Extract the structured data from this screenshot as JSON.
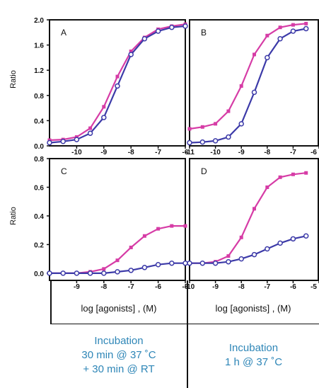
{
  "y_axis_label": "Ratio",
  "x_axis_label": "log [agonists] , (M)",
  "colors": {
    "series_a": "#d63ca6",
    "series_b": "#3c3aa8"
  },
  "chart_data": [
    {
      "type": "line",
      "panel": "A",
      "xlim": [
        -11,
        -6
      ],
      "ylim": [
        0,
        2.0
      ],
      "yticks": [
        "0.0",
        "0.4",
        "0.8",
        "1.2",
        "1.6",
        "2.0"
      ],
      "xticks": [
        "-10",
        "-9",
        "-8",
        "-7",
        "-6"
      ],
      "series": [
        {
          "x": [
            -11,
            -10.5,
            -10,
            -9.5,
            -9,
            -8.5,
            -8,
            -7.5,
            -7,
            -6.5,
            -6
          ],
          "y": [
            0.09,
            0.1,
            0.14,
            0.28,
            0.62,
            1.1,
            1.5,
            1.72,
            1.85,
            1.9,
            1.93
          ]
        },
        {
          "x": [
            -11,
            -10.5,
            -10,
            -9.5,
            -9,
            -8.5,
            -8,
            -7.5,
            -7,
            -6.5,
            -6
          ],
          "y": [
            0.05,
            0.07,
            0.1,
            0.2,
            0.45,
            0.95,
            1.45,
            1.7,
            1.82,
            1.88,
            1.9
          ]
        }
      ]
    },
    {
      "type": "line",
      "panel": "B",
      "xlim": [
        -11,
        -6
      ],
      "ylim": [
        0,
        2.0
      ],
      "yticks": [],
      "xticks": [
        "-11",
        "-10",
        "-9",
        "-8",
        "-7",
        "-6"
      ],
      "series": [
        {
          "x": [
            -11,
            -10.5,
            -10,
            -9.5,
            -9,
            -8.5,
            -8,
            -7.5,
            -7,
            -6.5,
            -6
          ],
          "y": [
            0.27,
            0.3,
            0.35,
            0.55,
            0.95,
            1.45,
            1.75,
            1.88,
            1.92,
            1.94,
            1.95
          ]
        },
        {
          "x": [
            -11,
            -10.5,
            -10,
            -9.5,
            -9,
            -8.5,
            -8,
            -7.5,
            -7,
            -6.5,
            -6
          ],
          "y": [
            0.05,
            0.06,
            0.08,
            0.14,
            0.35,
            0.85,
            1.4,
            1.7,
            1.82,
            1.86,
            1.88
          ]
        }
      ]
    },
    {
      "type": "line",
      "panel": "C",
      "xlim": [
        -10,
        -5
      ],
      "ylim": [
        -0.05,
        0.8
      ],
      "yticks": [
        "0.0",
        "0.2",
        "0.4",
        "0.6",
        "0.8"
      ],
      "xticks": [
        "-9",
        "-8",
        "-7",
        "-6",
        "-5"
      ],
      "series": [
        {
          "x": [
            -10,
            -9.5,
            -9,
            -8.5,
            -8,
            -7.5,
            -7,
            -6.5,
            -6,
            -5.5,
            -5
          ],
          "y": [
            0.0,
            0.0,
            0.0,
            0.01,
            0.03,
            0.09,
            0.18,
            0.26,
            0.31,
            0.33,
            0.33
          ]
        },
        {
          "x": [
            -10,
            -9.5,
            -9,
            -8.5,
            -8,
            -7.5,
            -7,
            -6.5,
            -6,
            -5.5,
            -5
          ],
          "y": [
            0.0,
            0.0,
            0.0,
            0.0,
            0.0,
            0.01,
            0.02,
            0.04,
            0.06,
            0.07,
            0.07
          ]
        }
      ]
    },
    {
      "type": "line",
      "panel": "D",
      "xlim": [
        -10,
        -5
      ],
      "ylim": [
        -0.05,
        0.8
      ],
      "yticks": [],
      "xticks": [
        "-10",
        "-9",
        "-8",
        "-7",
        "-6",
        "-5"
      ],
      "series": [
        {
          "x": [
            -10,
            -9.5,
            -9,
            -8.5,
            -8,
            -7.5,
            -7,
            -6.5,
            -6,
            -5.5,
            -5
          ],
          "y": [
            0.07,
            0.07,
            0.08,
            0.12,
            0.25,
            0.45,
            0.6,
            0.67,
            0.69,
            0.7,
            0.7
          ]
        },
        {
          "x": [
            -10,
            -9.5,
            -9,
            -8.5,
            -8,
            -7.5,
            -7,
            -6.5,
            -6,
            -5.5,
            -5
          ],
          "y": [
            0.07,
            0.07,
            0.07,
            0.08,
            0.1,
            0.13,
            0.17,
            0.21,
            0.24,
            0.26,
            0.27
          ]
        }
      ]
    }
  ],
  "conditions": [
    {
      "lines": [
        "Incubation",
        "30 min @ 37 ˚C",
        "+ 30 min @ RT"
      ]
    },
    {
      "lines": [
        "Incubation",
        "1 h @ 37 ˚C"
      ]
    }
  ]
}
